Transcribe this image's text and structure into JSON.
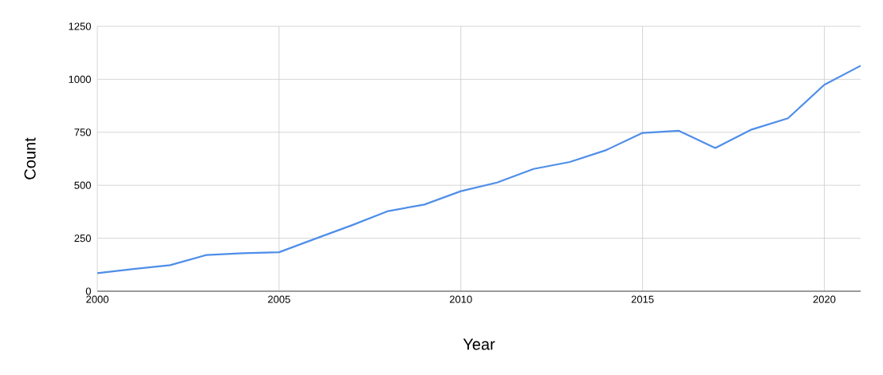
{
  "chart_data": {
    "type": "line",
    "xlabel": "Year",
    "ylabel": "Count",
    "x": [
      2000,
      2001,
      2002,
      2003,
      2004,
      2005,
      2006,
      2007,
      2008,
      2009,
      2010,
      2011,
      2012,
      2013,
      2014,
      2015,
      2016,
      2017,
      2018,
      2019,
      2020,
      2021
    ],
    "values": [
      85,
      105,
      123,
      171,
      179,
      184,
      248,
      311,
      378,
      409,
      472,
      513,
      577,
      610,
      666,
      747,
      757,
      676,
      763,
      816,
      974,
      1064
    ],
    "color": "#4f8ee9",
    "xlim": [
      2000,
      2021
    ],
    "xticks": [
      2000,
      2005,
      2010,
      2015,
      2020
    ],
    "ylim": [
      0,
      1250
    ],
    "yticks": [
      0,
      250,
      500,
      750,
      1000,
      1250
    ],
    "grid": true,
    "marker": "none",
    "line_style": "solid"
  }
}
